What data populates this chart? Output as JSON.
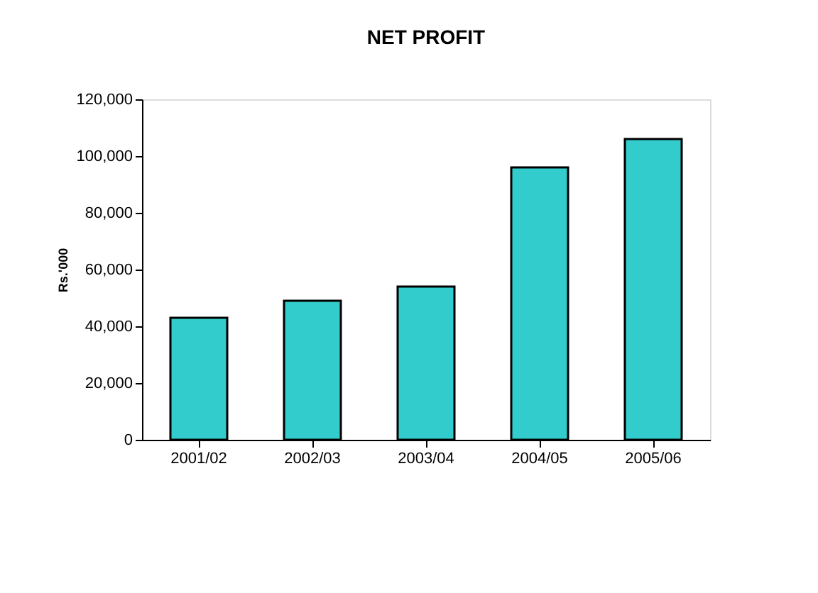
{
  "chart_data": {
    "type": "bar",
    "title": "NET PROFIT",
    "ylabel": "Rs.'000",
    "categories": [
      "2001/02",
      "2002/03",
      "2003/04",
      "2004/05",
      "2005/06"
    ],
    "values": [
      43000,
      49000,
      54000,
      96000,
      106000
    ],
    "color": "#33cccc",
    "ylim": [
      0,
      120000
    ],
    "yticks": [
      0,
      {
        "value": 20000,
        "label": "20,000"
      },
      {
        "value": 40000,
        "label": "40,000"
      },
      {
        "value": 60000,
        "label": "60,000"
      },
      {
        "value": 80000,
        "label": "80,000"
      },
      {
        "value": 100000,
        "label": "100,000"
      },
      {
        "value": 120000,
        "label": "120,000"
      }
    ],
    "grid": false
  }
}
